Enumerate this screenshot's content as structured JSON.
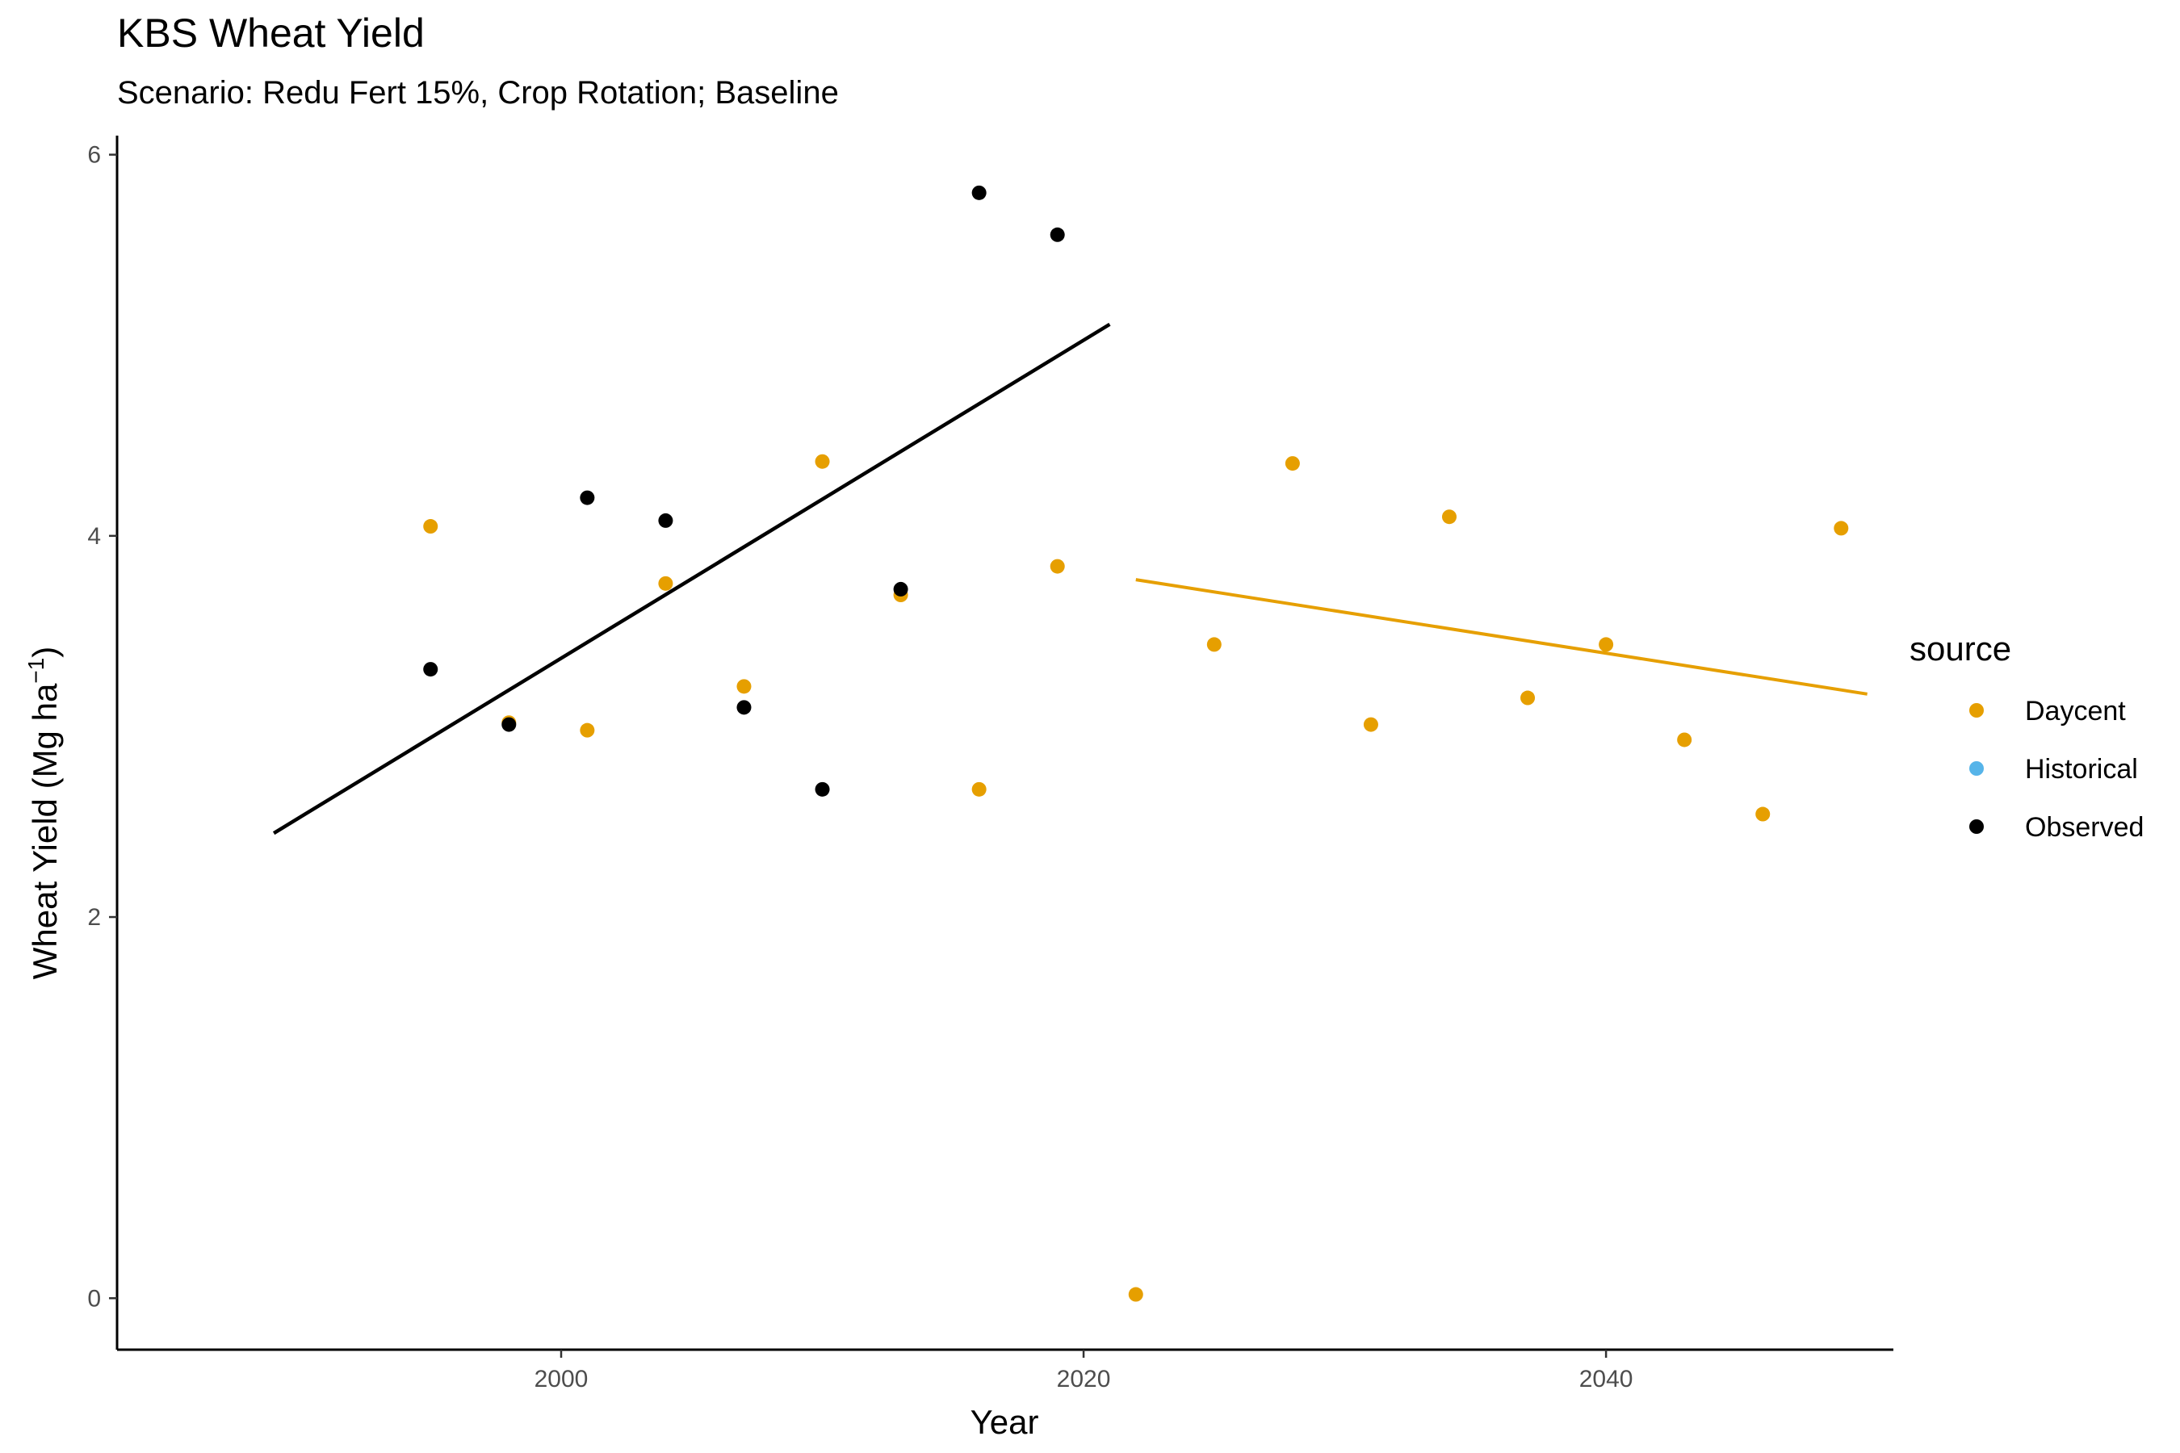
{
  "chart_data": {
    "type": "scatter",
    "title": "KBS Wheat Yield",
    "subtitle": "Scenario: Redu Fert 15%, Crop Rotation; Baseline",
    "xlabel": "Year",
    "ylabel_main": "Wheat Yield (Mg ha",
    "ylabel_sup": "−1",
    "ylabel_close": ")",
    "xlim": [
      1983,
      2051
    ],
    "ylim": [
      -0.27,
      6.1
    ],
    "x_ticks": [
      2000,
      2020,
      2040
    ],
    "y_ticks": [
      0,
      2,
      4,
      6
    ],
    "grid": false,
    "legend_title": "source",
    "legend_position": "right",
    "series": [
      {
        "name": "Daycent",
        "color": "#E69F00",
        "points": [
          [
            1995,
            4.05
          ],
          [
            1998,
            3.02
          ],
          [
            2001,
            2.98
          ],
          [
            2004,
            3.75
          ],
          [
            2007,
            3.21
          ],
          [
            2010,
            4.39
          ],
          [
            2013,
            3.69
          ],
          [
            2016,
            2.67
          ],
          [
            2019,
            3.84
          ],
          [
            2022,
            0.02
          ],
          [
            2025,
            3.43
          ],
          [
            2028,
            4.38
          ],
          [
            2031,
            3.01
          ],
          [
            2034,
            4.1
          ],
          [
            2037,
            3.15
          ],
          [
            2040,
            3.43
          ],
          [
            2043,
            2.93
          ],
          [
            2046,
            2.54
          ],
          [
            2049,
            4.04
          ]
        ],
        "trend": [
          [
            2022,
            3.77
          ],
          [
            2050,
            3.17
          ]
        ]
      },
      {
        "name": "Historical",
        "color": "#56B4E9",
        "points": [],
        "trend": null
      },
      {
        "name": "Observed",
        "color": "#000000",
        "points": [
          [
            1995,
            3.3
          ],
          [
            1998,
            3.01
          ],
          [
            2001,
            4.2
          ],
          [
            2004,
            4.08
          ],
          [
            2007,
            3.1
          ],
          [
            2010,
            2.67
          ],
          [
            2013,
            3.72
          ],
          [
            2016,
            5.8
          ],
          [
            2019,
            5.58
          ]
        ],
        "trend": [
          [
            1989,
            2.44
          ],
          [
            2021,
            5.11
          ]
        ]
      }
    ]
  }
}
